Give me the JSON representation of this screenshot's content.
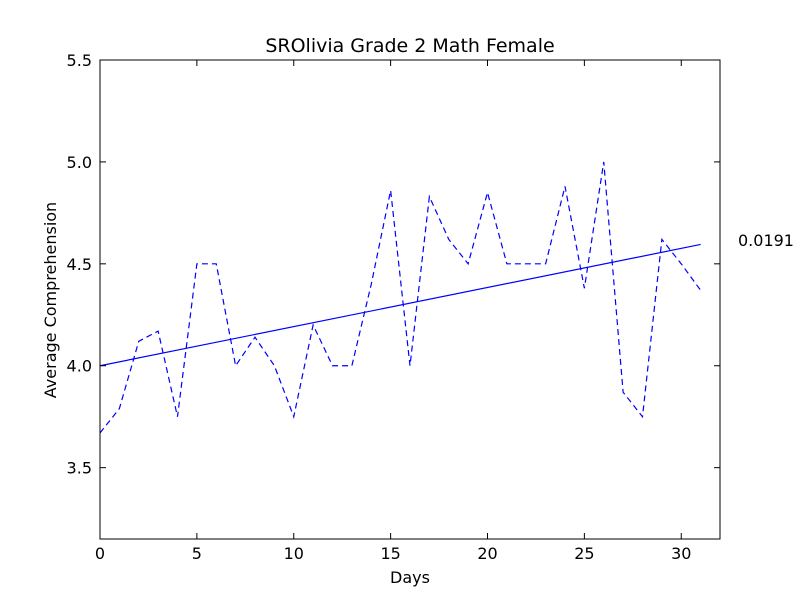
{
  "chart_data": {
    "type": "line",
    "title": "SROlivia Grade 2 Math Female",
    "xlabel": "Days",
    "ylabel": "Average Comprehension",
    "xlim": [
      0,
      32
    ],
    "ylim": [
      3.15,
      5.5
    ],
    "xticks": [
      "0",
      "5",
      "10",
      "15",
      "20",
      "25",
      "30"
    ],
    "yticks": [
      "3.5",
      "4.0",
      "4.5",
      "5.0",
      "5.5"
    ],
    "grid": false,
    "series": [
      {
        "style": "dashed",
        "color": "#0000ff",
        "x": [
          0,
          1,
          2,
          3,
          4,
          5,
          6,
          7,
          8,
          9,
          10,
          11,
          12,
          13,
          14,
          15,
          16,
          17,
          18,
          19,
          20,
          21,
          22,
          23,
          24,
          25,
          26,
          27,
          28,
          29,
          30,
          31
        ],
        "y": [
          3.67,
          3.79,
          4.12,
          4.17,
          3.75,
          4.5,
          4.5,
          4.0,
          4.14,
          4.0,
          3.75,
          4.2,
          4.0,
          4.0,
          4.4,
          4.86,
          4.0,
          4.83,
          4.62,
          4.5,
          4.85,
          4.5,
          4.5,
          4.5,
          4.88,
          4.38,
          5.0,
          3.87,
          3.75,
          4.62,
          4.5,
          4.37
        ]
      },
      {
        "style": "solid",
        "color": "#0000ff",
        "x": [
          0,
          31
        ],
        "y": [
          4.0,
          4.595
        ]
      }
    ],
    "annotations": [
      {
        "text": "0.0191"
      }
    ]
  }
}
